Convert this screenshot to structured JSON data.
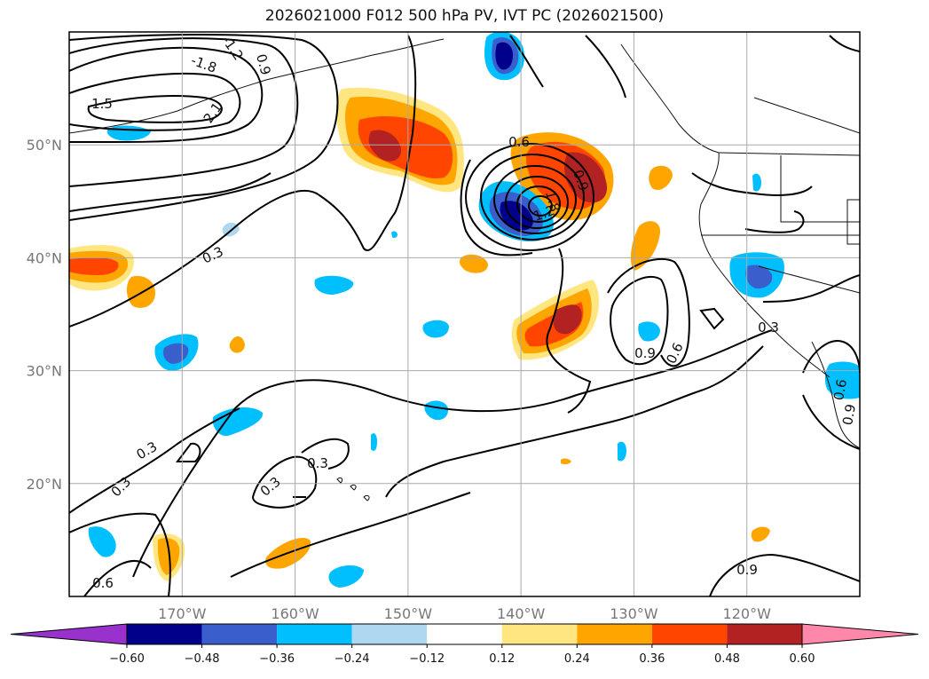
{
  "title": "2026021000 F012 500 hPa PV, IVT PC (2026021500)",
  "map": {
    "lon_range": [
      -180,
      -110
    ],
    "lat_range": [
      10,
      60
    ],
    "lat_ticks": [
      {
        "lat": 50,
        "label": "50°N"
      },
      {
        "lat": 40,
        "label": "40°N"
      },
      {
        "lat": 30,
        "label": "30°N"
      },
      {
        "lat": 20,
        "label": "20°N"
      }
    ],
    "lon_ticks": [
      {
        "lon": -170,
        "label": "170°W"
      },
      {
        "lon": -160,
        "label": "160°W"
      },
      {
        "lon": -150,
        "label": "150°W"
      },
      {
        "lon": -140,
        "label": "140°W"
      },
      {
        "lon": -130,
        "label": "130°W"
      },
      {
        "lon": -120,
        "label": "120°W"
      }
    ],
    "contour_labels": [
      "1.5",
      "-1.8",
      "-1.2",
      "0.9",
      "2.1",
      "0.6",
      "0.9",
      "1.2",
      "1.8",
      "0.3",
      "0.9",
      "0.6",
      "0.3",
      "0.3",
      "0.3",
      "0.3",
      "0.6",
      "0.9",
      "0.3",
      "0.6",
      "0.9"
    ]
  },
  "colorbar": {
    "under_color": "#9932cc",
    "over_color": "#ff88aa",
    "colors": [
      "#00008b",
      "#3a5fcd",
      "#00bfff",
      "#add8f0",
      "#ffffff",
      "#ffe680",
      "#ffa500",
      "#ff4500",
      "#b22222"
    ],
    "ticks": [
      "−0.60",
      "−0.48",
      "−0.36",
      "−0.24",
      "−0.12",
      "0.12",
      "0.24",
      "0.36",
      "0.48",
      "0.60"
    ]
  }
}
